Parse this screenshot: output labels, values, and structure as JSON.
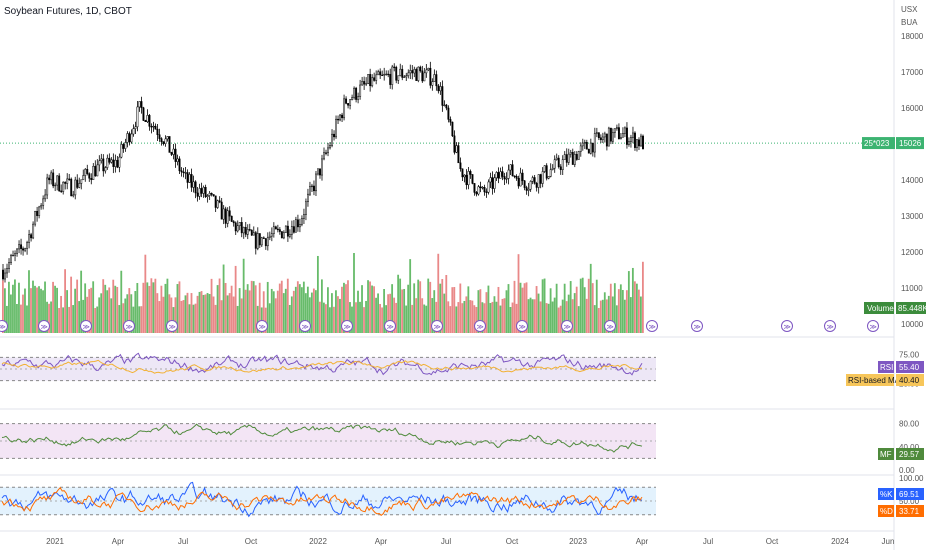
{
  "chart_data": {
    "type": "line",
    "title": "Soybean Futures, 1D, CBOT",
    "currency": "USX",
    "unit": "BUA",
    "x_ticks": [
      "2021",
      "Apr",
      "Jul",
      "Oct",
      "2022",
      "Apr",
      "Jul",
      "Oct",
      "2023",
      "Apr",
      "Jul",
      "Oct",
      "2024",
      "Jun"
    ],
    "price_axis_ticks": [
      "18000",
      "17000",
      "16000",
      "15000",
      "14000",
      "13000",
      "12000",
      "11000",
      "10000"
    ],
    "price_ylim": [
      10000,
      18000
    ],
    "price_series": {
      "name": "Soybean Futures",
      "x": [
        "2020-11",
        "2020-12",
        "2021-01",
        "2021-02",
        "2021-03",
        "2021-04",
        "2021-05",
        "2021-06",
        "2021-07",
        "2021-08",
        "2021-09",
        "2021-10",
        "2021-11",
        "2021-12",
        "2022-01",
        "2022-02",
        "2022-03",
        "2022-04",
        "2022-05",
        "2022-06",
        "2022-07",
        "2022-08",
        "2022-09",
        "2022-10",
        "2022-11",
        "2022-12",
        "2023-01",
        "2023-02",
        "2023-03"
      ],
      "values": [
        11500,
        12200,
        14000,
        13800,
        14300,
        14500,
        16000,
        15200,
        14000,
        13500,
        12800,
        12300,
        12500,
        12900,
        14500,
        16200,
        16700,
        16900,
        17000,
        16800,
        14300,
        13600,
        14300,
        13900,
        14300,
        14700,
        15100,
        15300,
        15026
      ]
    },
    "last_price": {
      "label": "25*023",
      "value": "15026"
    },
    "volume_panel": {
      "label": "Volume",
      "value": "85.448K"
    },
    "indicators": [
      {
        "name": "RSI",
        "value": "55.40",
        "ma_name": "RSI-based MA",
        "ma_value": "40.40",
        "ticks": [
          "75.00",
          "50.00",
          "25.00"
        ],
        "bands": [
          30,
          70
        ]
      },
      {
        "name": "MF",
        "value": "29.57",
        "ticks": [
          "80.00",
          "40.00",
          "0.00"
        ],
        "bands": [
          20,
          80
        ]
      },
      {
        "name": "Stochastic",
        "k_label": "%K",
        "k_value": "69.51",
        "d_label": "%D",
        "d_value": "33.71",
        "ticks": [
          "100.00",
          "50.00"
        ],
        "bands": [
          20,
          80
        ]
      }
    ],
    "colors": {
      "up": "#26a69a",
      "down": "#ef5350",
      "vol_up": "#4caf50",
      "vol_down": "#e57373",
      "rsi": "#7e57c2",
      "rsi_ma": "#f2b134",
      "mf": "#4f8a3c",
      "stoch_k": "#2962ff",
      "stoch_d": "#ff6d00",
      "last_price": "#3cb371",
      "rsi_bg": "#ede7f6",
      "mf_bg": "#f3e5f5",
      "stoch_bg": "#e3f2fd",
      "event": "#7e57c2"
    }
  }
}
